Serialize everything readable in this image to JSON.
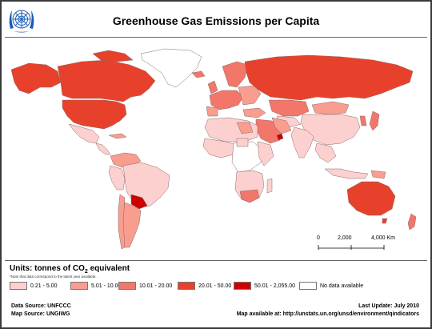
{
  "title": "Greenhouse Gas Emissions per Capita",
  "logo_icon": "un-emblem-icon",
  "colors": {
    "class1": "#fdd0d0",
    "class2": "#f99d8f",
    "class3": "#f2776a",
    "class4": "#e8412b",
    "class5": "#cc0000",
    "nodata": "#ffffff",
    "ocean": "#ffffff",
    "border": "#8a6a6a"
  },
  "scale": {
    "labels": [
      "0",
      "2,000",
      "4,000 Km"
    ]
  },
  "legend": {
    "units_prefix": "Units: tonnes of CO",
    "units_sub": "2",
    "units_suffix": " equivalent",
    "note": "*Note that data correspond to the latest year available.",
    "items": [
      {
        "label": "0.21 - 5.00",
        "color": "#fdd0d0"
      },
      {
        "label": "5.01 - 10.00",
        "color": "#f99d8f"
      },
      {
        "label": "10.01 - 20.00",
        "color": "#f2776a"
      },
      {
        "label": "20.01 - 50.00",
        "color": "#e8412b"
      },
      {
        "label": "50.01 - 2,055.00",
        "color": "#cc0000"
      },
      {
        "label": "No data available",
        "color": "#ffffff"
      }
    ]
  },
  "footer": {
    "data_source": "Data Source: UNFCCC",
    "map_source": "Map Source: UNGIWG",
    "last_update": "Last Update: July 2010",
    "map_available": "Map available at: http://unstats.un.org/unsd/environment/qindicators"
  }
}
